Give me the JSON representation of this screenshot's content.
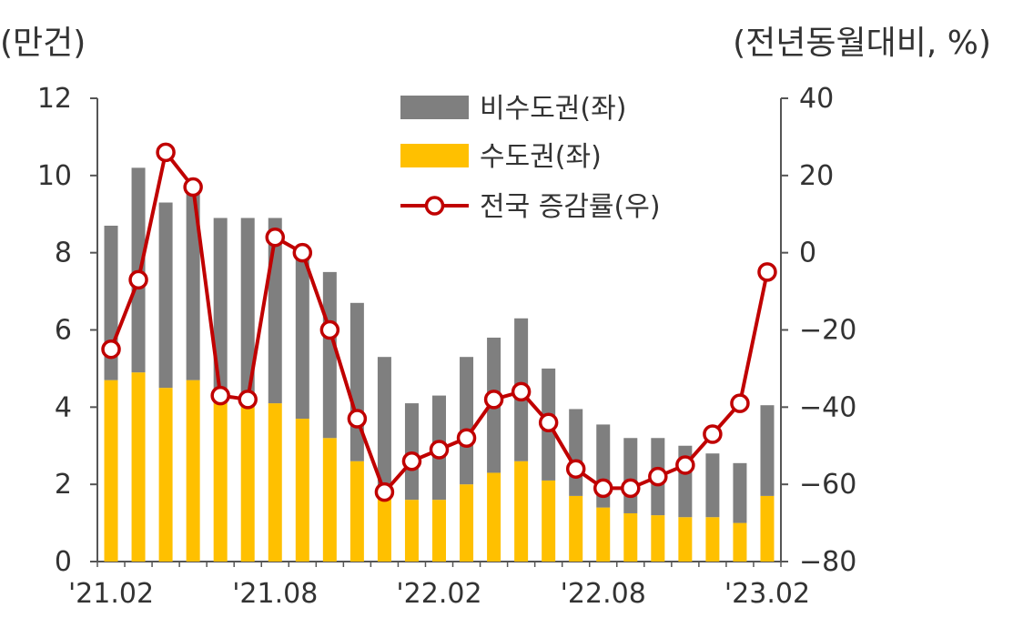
{
  "chart_data": {
    "type": "bar",
    "y_left_unit": "(만건)",
    "y_right_unit": "(전년동월대비, %)",
    "ylim_left": [
      0,
      12
    ],
    "ylim_right": [
      -80,
      40
    ],
    "yticks_left": [
      "0",
      "2",
      "4",
      "6",
      "8",
      "10",
      "12"
    ],
    "yticks_right": [
      "−80",
      "−60",
      "−40",
      "−20",
      "0",
      "20",
      "40"
    ],
    "categories": [
      "'21.02",
      "'21.03",
      "'21.04",
      "'21.05",
      "'21.06",
      "'21.07",
      "'21.08",
      "'21.09",
      "'21.10",
      "'21.11",
      "'21.12",
      "'22.01",
      "'22.02",
      "'22.03",
      "'22.04",
      "'22.05",
      "'22.06",
      "'22.07",
      "'22.08",
      "'22.09",
      "'22.10",
      "'22.11",
      "'22.12",
      "'23.01",
      "'23.02"
    ],
    "x_tick_labels": [
      {
        "index": 0,
        "label": "'21.02"
      },
      {
        "index": 6,
        "label": "'21.08"
      },
      {
        "index": 12,
        "label": "'22.02"
      },
      {
        "index": 18,
        "label": "'22.08"
      },
      {
        "index": 24,
        "label": "'23.02"
      }
    ],
    "series": [
      {
        "name": "수도권(좌)",
        "kind": "bar",
        "axis": "left",
        "color": "#ffc000",
        "values": [
          4.7,
          4.9,
          4.5,
          4.7,
          4.1,
          4.0,
          4.1,
          3.7,
          3.2,
          2.6,
          1.7,
          1.6,
          1.6,
          2.0,
          2.3,
          2.6,
          2.1,
          1.7,
          1.4,
          1.25,
          1.2,
          1.15,
          1.15,
          1.0,
          1.7
        ]
      },
      {
        "name": "비수도권(좌)",
        "kind": "bar",
        "axis": "left",
        "color": "#7f7f7f",
        "values": [
          4.0,
          5.3,
          4.8,
          5.0,
          4.8,
          4.9,
          4.8,
          4.4,
          4.3,
          4.1,
          3.6,
          2.5,
          2.7,
          3.3,
          3.5,
          3.7,
          2.9,
          2.25,
          2.15,
          1.95,
          2.0,
          1.85,
          1.65,
          1.55,
          2.35
        ]
      },
      {
        "name": "전국 증감률(우)",
        "kind": "line",
        "axis": "right",
        "color": "#c00000",
        "values": [
          -25,
          -7,
          26,
          17,
          -37,
          -38,
          4,
          0,
          -20,
          -43,
          -62,
          -54,
          -51,
          -48,
          -38,
          -36,
          -44,
          -56,
          -61,
          -61,
          -58,
          -55,
          -47,
          -39,
          -5
        ]
      }
    ],
    "legend_position": "top-center",
    "grid": false
  }
}
